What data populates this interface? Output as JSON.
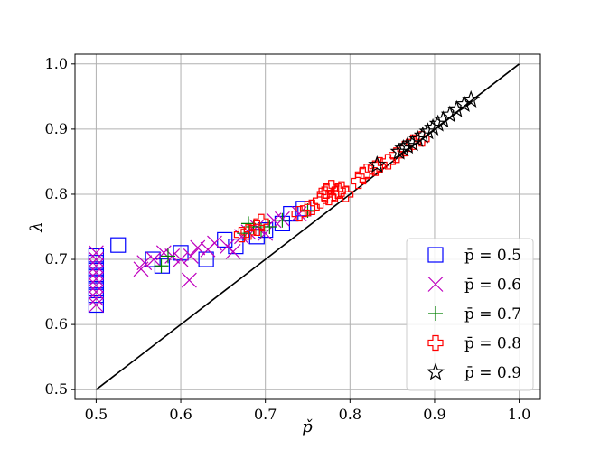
{
  "chart_data": {
    "type": "scatter",
    "title": "",
    "xlabel": "p̌",
    "ylabel": "λ",
    "xlim": [
      0.475,
      1.025
    ],
    "ylim": [
      0.485,
      1.015
    ],
    "xticks": [
      0.5,
      0.6,
      0.7,
      0.8,
      0.9,
      1.0
    ],
    "xtick_labels": [
      "0.5",
      "0.6",
      "0.7",
      "0.8",
      "0.9",
      "1.0"
    ],
    "yticks": [
      0.5,
      0.6,
      0.7,
      0.8,
      0.9,
      1.0
    ],
    "ytick_labels": [
      "0.5",
      "0.6",
      "0.7",
      "0.8",
      "0.9",
      "1.0"
    ],
    "grid": true,
    "legend_position": "lower-right",
    "reference_line": {
      "x": [
        0.5,
        1.0
      ],
      "y": [
        0.5,
        1.0
      ],
      "color": "#000000"
    },
    "series": [
      {
        "name": "p̄ = 0.5",
        "marker": "square",
        "color": "#0000ff",
        "points": [
          [
            0.5,
            0.63
          ],
          [
            0.5,
            0.645
          ],
          [
            0.5,
            0.655
          ],
          [
            0.5,
            0.665
          ],
          [
            0.5,
            0.675
          ],
          [
            0.5,
            0.685
          ],
          [
            0.5,
            0.695
          ],
          [
            0.5,
            0.705
          ],
          [
            0.526,
            0.722
          ],
          [
            0.567,
            0.7
          ],
          [
            0.578,
            0.69
          ],
          [
            0.6,
            0.71
          ],
          [
            0.63,
            0.7
          ],
          [
            0.652,
            0.73
          ],
          [
            0.665,
            0.72
          ],
          [
            0.69,
            0.735
          ],
          [
            0.7,
            0.745
          ],
          [
            0.72,
            0.755
          ],
          [
            0.73,
            0.77
          ],
          [
            0.745,
            0.778
          ]
        ]
      },
      {
        "name": "p̄ = 0.6",
        "marker": "x",
        "color": "#bf00bf",
        "points": [
          [
            0.5,
            0.63
          ],
          [
            0.5,
            0.64
          ],
          [
            0.5,
            0.65
          ],
          [
            0.5,
            0.66
          ],
          [
            0.5,
            0.67
          ],
          [
            0.5,
            0.68
          ],
          [
            0.5,
            0.69
          ],
          [
            0.5,
            0.7
          ],
          [
            0.5,
            0.71
          ],
          [
            0.553,
            0.685
          ],
          [
            0.557,
            0.695
          ],
          [
            0.568,
            0.7
          ],
          [
            0.58,
            0.71
          ],
          [
            0.59,
            0.705
          ],
          [
            0.6,
            0.7
          ],
          [
            0.61,
            0.668
          ],
          [
            0.612,
            0.705
          ],
          [
            0.62,
            0.718
          ],
          [
            0.632,
            0.715
          ],
          [
            0.64,
            0.725
          ],
          [
            0.655,
            0.72
          ],
          [
            0.662,
            0.712
          ],
          [
            0.672,
            0.735
          ],
          [
            0.68,
            0.742
          ],
          [
            0.69,
            0.75
          ],
          [
            0.7,
            0.74
          ],
          [
            0.71,
            0.76
          ],
          [
            0.72,
            0.762
          ],
          [
            0.74,
            0.77
          ]
        ]
      },
      {
        "name": "p̄ = 0.7",
        "marker": "plus",
        "color": "#008000",
        "points": [
          [
            0.577,
            0.69
          ],
          [
            0.585,
            0.705
          ],
          [
            0.675,
            0.74
          ],
          [
            0.68,
            0.755
          ],
          [
            0.686,
            0.75
          ],
          [
            0.695,
            0.745
          ],
          [
            0.705,
            0.75
          ],
          [
            0.72,
            0.76
          ],
          [
            0.75,
            0.775
          ]
        ]
      },
      {
        "name": "p̄ = 0.8",
        "marker": "plus",
        "color": "#ff0000",
        "points": [
          [
            0.672,
            0.738
          ],
          [
            0.68,
            0.742
          ],
          [
            0.69,
            0.748
          ],
          [
            0.695,
            0.758
          ],
          [
            0.74,
            0.77
          ],
          [
            0.75,
            0.778
          ],
          [
            0.755,
            0.78
          ],
          [
            0.765,
            0.79
          ],
          [
            0.77,
            0.8
          ],
          [
            0.772,
            0.805
          ],
          [
            0.775,
            0.795
          ],
          [
            0.778,
            0.81
          ],
          [
            0.782,
            0.8
          ],
          [
            0.786,
            0.805
          ],
          [
            0.79,
            0.808
          ],
          [
            0.795,
            0.8
          ],
          [
            0.81,
            0.82
          ],
          [
            0.815,
            0.83
          ],
          [
            0.82,
            0.835
          ],
          [
            0.83,
            0.84
          ],
          [
            0.835,
            0.845
          ],
          [
            0.845,
            0.85
          ],
          [
            0.855,
            0.86
          ],
          [
            0.865,
            0.87
          ],
          [
            0.875,
            0.88
          ],
          [
            0.885,
            0.885
          ]
        ]
      },
      {
        "name": "p̄ = 0.9",
        "marker": "star",
        "color": "#000000",
        "points": [
          [
            0.832,
            0.845
          ],
          [
            0.858,
            0.865
          ],
          [
            0.863,
            0.87
          ],
          [
            0.868,
            0.874
          ],
          [
            0.874,
            0.878
          ],
          [
            0.88,
            0.884
          ],
          [
            0.886,
            0.89
          ],
          [
            0.892,
            0.896
          ],
          [
            0.898,
            0.902
          ],
          [
            0.904,
            0.908
          ],
          [
            0.91,
            0.914
          ],
          [
            0.918,
            0.922
          ],
          [
            0.926,
            0.93
          ],
          [
            0.935,
            0.938
          ],
          [
            0.943,
            0.945
          ]
        ]
      }
    ]
  }
}
